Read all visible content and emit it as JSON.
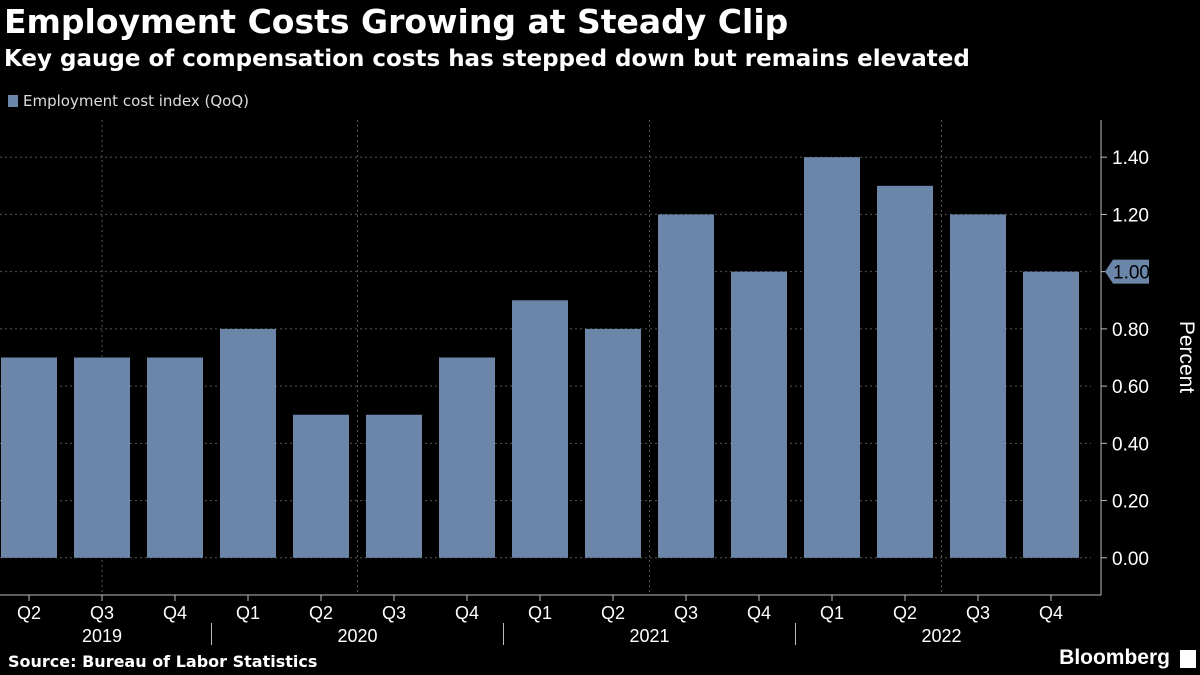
{
  "header": {
    "title": "Employment Costs Growing at Steady Clip",
    "subtitle": "Key gauge of compensation costs has stepped down but remains elevated"
  },
  "legend": {
    "label": "Employment cost index (QoQ)"
  },
  "footer": {
    "source": "Source: Bureau of Labor Statistics",
    "brand": "Bloomberg"
  },
  "chart_data": {
    "type": "bar",
    "categories": [
      "Q2",
      "Q3",
      "Q4",
      "Q1",
      "Q2",
      "Q3",
      "Q4",
      "Q1",
      "Q2",
      "Q3",
      "Q4",
      "Q1",
      "Q2",
      "Q3",
      "Q4"
    ],
    "year_groups": [
      {
        "label": "2019",
        "count": 3
      },
      {
        "label": "2020",
        "count": 4
      },
      {
        "label": "2021",
        "count": 4
      },
      {
        "label": "2022",
        "count": 4
      }
    ],
    "series": [
      {
        "name": "Employment cost index (QoQ)",
        "values": [
          0.7,
          0.7,
          0.7,
          0.8,
          0.5,
          0.5,
          0.7,
          0.9,
          0.8,
          1.2,
          1.0,
          1.4,
          1.3,
          1.2,
          1.0
        ]
      }
    ],
    "ylabel": "Percent",
    "ylim": [
      -0.13,
      1.53
    ],
    "yticks": [
      0.0,
      0.2,
      0.4,
      0.6,
      0.8,
      1.0,
      1.2,
      1.4
    ],
    "ytick_labels": [
      "0.00",
      "0.20",
      "0.40",
      "0.60",
      "0.80",
      "1.00",
      "1.20",
      "1.40"
    ],
    "last_value_label": "1.00",
    "bar_color": "#6c86aa",
    "grid": true,
    "legend_position": "top-left"
  }
}
